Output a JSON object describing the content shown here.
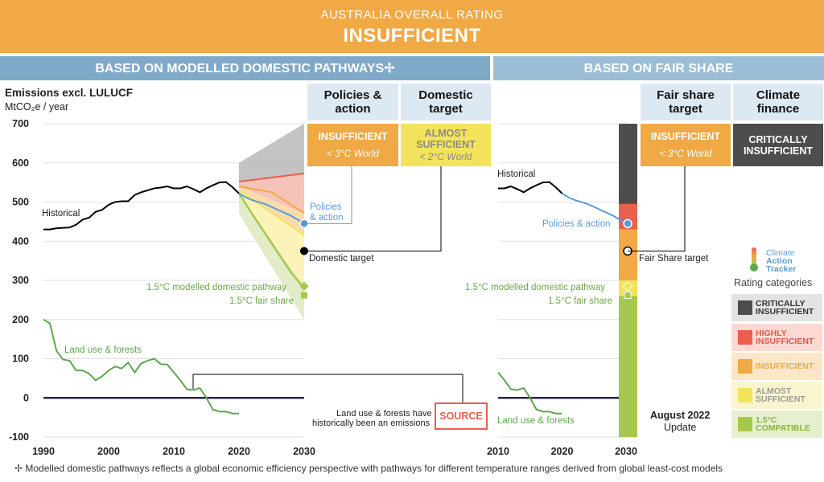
{
  "header": {
    "subtitle": "AUSTRALIA OVERALL RATING",
    "rating": "INSUFFICIENT"
  },
  "bands": {
    "left": "BASED ON MODELLED DOMESTIC PATHWAYS✢",
    "right": "BASED ON FAIR SHARE"
  },
  "columns": {
    "policies": {
      "title1": "Policies &",
      "title2": "action",
      "rating": "INSUFFICIENT",
      "note": "< 3°C World"
    },
    "domestic": {
      "title1": "Domestic",
      "title2": "target",
      "rating1": "ALMOST",
      "rating2": "SUFFICIENT",
      "note": "< 2°C World"
    },
    "fairshare": {
      "title1": "Fair share",
      "title2": "target",
      "rating": "INSUFFICIENT",
      "note": "< 3°C World"
    },
    "finance": {
      "title1": "Climate",
      "title2": "finance",
      "rating1": "CRITICALLY",
      "rating2": "INSUFFICIENT"
    }
  },
  "colors": {
    "header": "#f0a945",
    "band": "#7fa9c9",
    "critically": "#4d4d4d",
    "highly": "#e8604b",
    "insufficient": "#f0a945",
    "almost": "#f3e35b",
    "compatible": "#a6c84e",
    "historical": "#000000",
    "policies": "#5b9bd5",
    "landuse": "#5ba84a"
  },
  "axis": {
    "title": "Emissions excl. LULUCF",
    "unit": "MtCO₂e / year",
    "y_ticks": [
      "700",
      "600",
      "500",
      "400",
      "300",
      "200",
      "100",
      "0",
      "-100"
    ],
    "x_ticks_left": [
      "1990",
      "2000",
      "2010",
      "2020",
      "2030"
    ],
    "x_ticks_right": [
      "2010",
      "2020",
      "2030"
    ]
  },
  "labels": {
    "historical": "Historical",
    "historical_right": "Historical",
    "policies1": "Policies",
    "policies2": "& action",
    "policies_right": "Policies & action",
    "domestic_target": "Domestic target",
    "fair_share_target": "Fair Share target",
    "pathway_15_left": "1.5°C modelled domestic pathway",
    "fairshare_15_left": "1.5°C fair share",
    "pathway_15_right": "1.5°C modelled domestic pathway",
    "fairshare_15_right": "1.5°C fair share",
    "landuse_left": "Land use & forests",
    "landuse_right": "Land use & forests",
    "landuse_note1": "Land use & forests have",
    "landuse_note2": "historically been an emissions",
    "source_button": "SOURCE",
    "update1": "August 2022",
    "update2": "Update"
  },
  "cat_logo": {
    "line1": "Climate",
    "line2": "Action",
    "line3": "Tracker"
  },
  "rating_categories": {
    "title": "Rating categories",
    "items": [
      {
        "line1": "CRITICALLY",
        "line2": "INSUFFICIENT",
        "color": "#4d4d4d",
        "bg": "#e3e3e3",
        "fg": "#333333"
      },
      {
        "line1": "HIGHLY",
        "line2": "INSUFFICIENT",
        "color": "#e8604b",
        "bg": "#fbd9d2",
        "fg": "#e05a46"
      },
      {
        "line1": "INSUFFICIENT",
        "line2": "",
        "color": "#f0a945",
        "bg": "#fbe6c8",
        "fg": "#f0a945"
      },
      {
        "line1": "ALMOST",
        "line2": "SUFFICIENT",
        "color": "#f3e35b",
        "bg": "#fbf5cf",
        "fg": "#999999"
      },
      {
        "line1": "1.5°C",
        "line2": "COMPATIBLE",
        "color": "#a6c84e",
        "bg": "#e6efce",
        "fg": "#8cb33c"
      }
    ]
  },
  "footnote": "✢  Modelled domestic pathways reflects a global economic efficiency perspective with pathways for different temperature ranges derived from global least-cost models",
  "chart_data": {
    "type": "line",
    "xlim": [
      1990,
      2030
    ],
    "ylim": [
      -100,
      700
    ],
    "series": [
      {
        "name": "Historical",
        "x": [
          1990,
          1991,
          1992,
          1993,
          1994,
          1995,
          1996,
          1997,
          1998,
          1999,
          2000,
          2001,
          2002,
          2003,
          2004,
          2005,
          2006,
          2007,
          2008,
          2009,
          2010,
          2011,
          2012,
          2013,
          2014,
          2015,
          2016,
          2017,
          2018,
          2019,
          2020
        ],
        "y": [
          430,
          430,
          433,
          434,
          435,
          442,
          455,
          460,
          475,
          480,
          493,
          500,
          502,
          502,
          518,
          525,
          530,
          535,
          537,
          540,
          535,
          535,
          540,
          533,
          525,
          535,
          543,
          550,
          551,
          538,
          522
        ]
      },
      {
        "name": "Policies & action",
        "x": [
          2020,
          2021,
          2022,
          2024,
          2026,
          2028,
          2030
        ],
        "y": [
          522,
          512,
          505,
          495,
          480,
          465,
          445
        ]
      },
      {
        "name": "Land use & forests",
        "x": [
          1990,
          1991,
          1992,
          1993,
          1994,
          1995,
          1996,
          1997,
          1998,
          1999,
          2000,
          2001,
          2002,
          2003,
          2004,
          2005,
          2006,
          2007,
          2008,
          2009,
          2010,
          2011,
          2012,
          2013,
          2014,
          2015,
          2016,
          2017,
          2018,
          2019,
          2020
        ],
        "y": [
          200,
          190,
          120,
          98,
          95,
          70,
          70,
          62,
          45,
          55,
          70,
          80,
          75,
          90,
          65,
          88,
          95,
          100,
          86,
          85,
          65,
          45,
          22,
          20,
          25,
          0,
          -30,
          -35,
          -35,
          -40,
          -40
        ]
      },
      {
        "name": "1.5°C modelled domestic pathway",
        "x": [
          2020,
          2022,
          2024,
          2026,
          2028,
          2030
        ],
        "y": [
          522,
          470,
          420,
          370,
          320,
          280
        ]
      }
    ],
    "targets": {
      "domestic_target_2030": 375,
      "modelled_15_2030": 285,
      "fair_share_15_2030": 262
    },
    "fair_share_bar_2030": [
      {
        "category": "critically",
        "from": 700,
        "to": 495
      },
      {
        "category": "highly",
        "from": 495,
        "to": 430
      },
      {
        "category": "insufficient",
        "from": 430,
        "to": 300
      },
      {
        "category": "almost",
        "from": 300,
        "to": 260
      },
      {
        "category": "compatible",
        "from": 260,
        "to": -100
      }
    ]
  }
}
